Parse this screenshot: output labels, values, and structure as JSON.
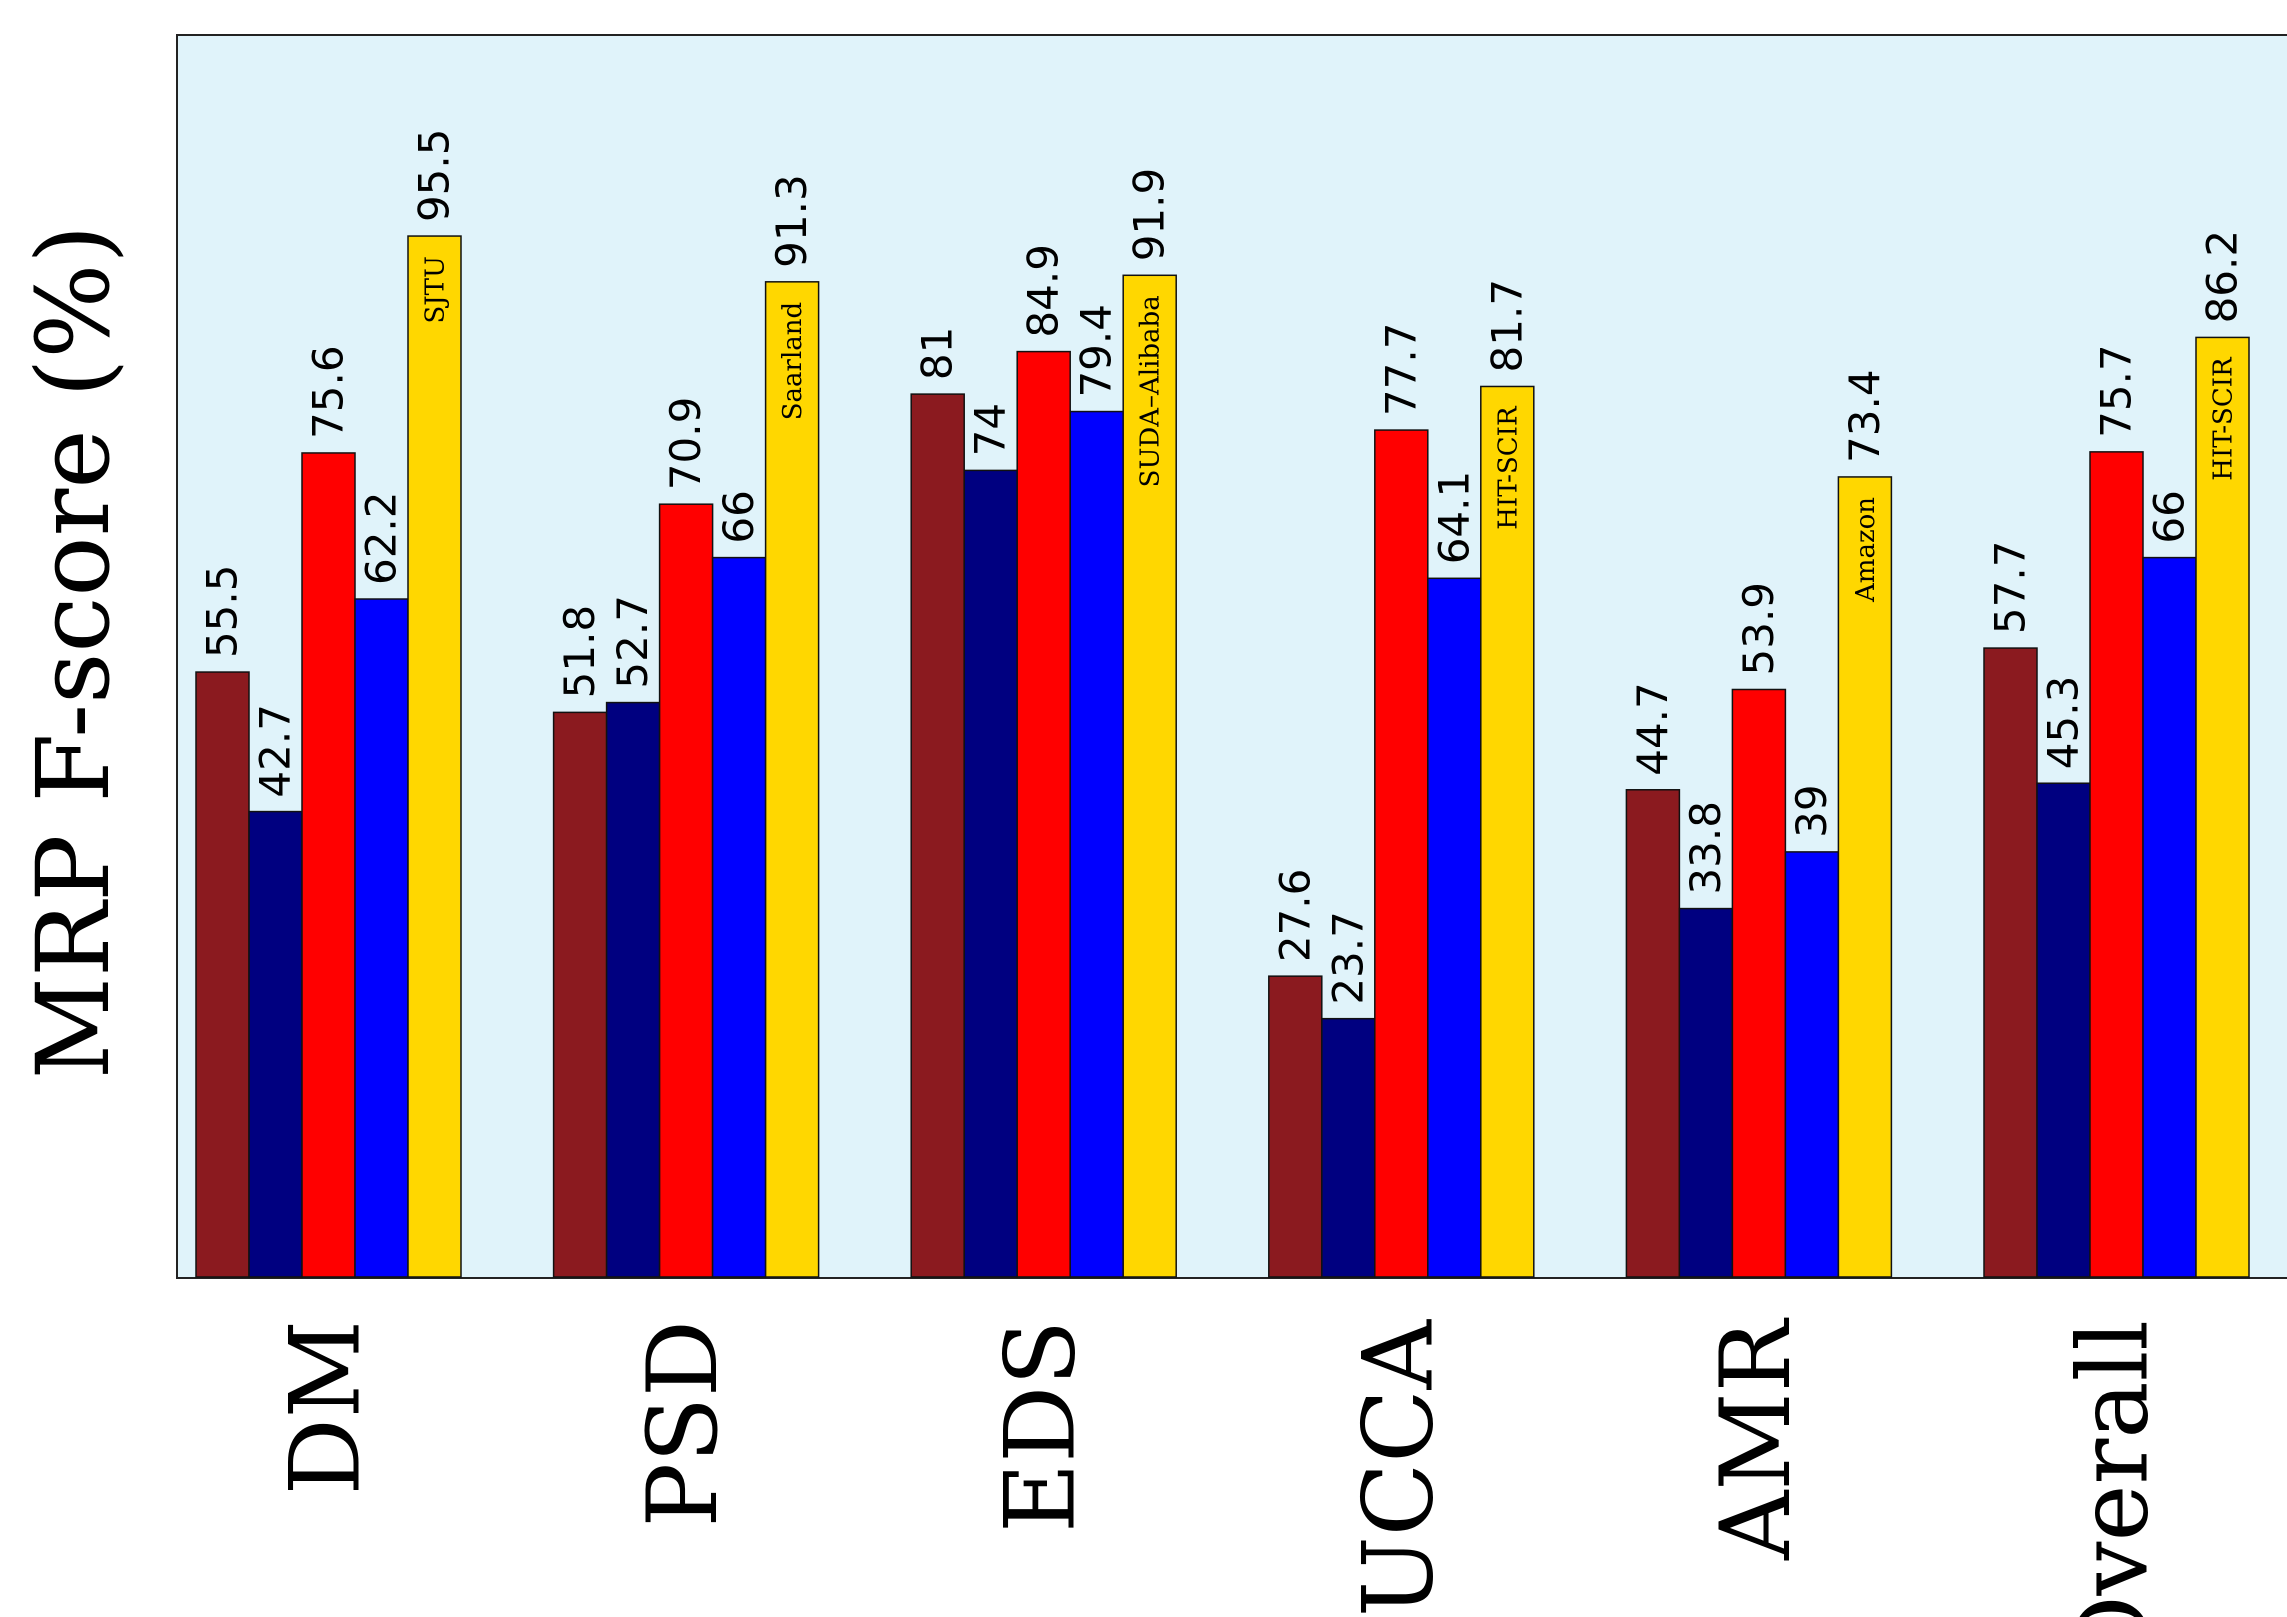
{
  "chart_data": {
    "type": "bar",
    "ylabel": "MRP F-score (%)",
    "ylim": [
      0,
      100
    ],
    "grid": false,
    "categories": [
      "DM",
      "PSD",
      "EDS",
      "UCCA",
      "AMR",
      "Overall"
    ],
    "series": [
      {
        "color": "#8B1A1F",
        "values": [
          55.5,
          51.8,
          81,
          27.6,
          44.7,
          57.7
        ]
      },
      {
        "color": "#000080",
        "values": [
          42.7,
          52.7,
          74,
          23.7,
          33.8,
          45.3
        ]
      },
      {
        "color": "#FF0000",
        "values": [
          75.6,
          70.9,
          84.9,
          77.7,
          53.9,
          75.7
        ]
      },
      {
        "color": "#0000FF",
        "values": [
          62.2,
          66,
          79.4,
          64.1,
          39,
          66
        ]
      },
      {
        "color": "#FFD700",
        "values": [
          95.5,
          91.3,
          91.9,
          81.7,
          73.4,
          86.2
        ]
      }
    ],
    "best_system_labels": [
      "SJTU",
      "Saarland",
      "SUDA–Alibaba",
      "HIT-SCIR",
      "Amazon",
      "HIT-SCIR"
    ],
    "plot_background": "#E0F3FA"
  }
}
